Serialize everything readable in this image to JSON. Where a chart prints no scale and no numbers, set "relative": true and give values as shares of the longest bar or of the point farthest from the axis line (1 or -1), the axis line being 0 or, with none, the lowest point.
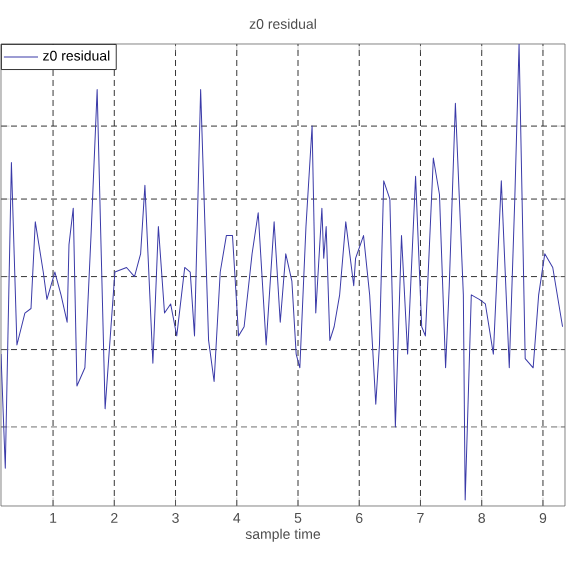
{
  "chart_data": {
    "type": "line",
    "title": "z0 residual",
    "xlabel": "sample time",
    "relative": true,
    "xlim": [
      0.15,
      9.36
    ],
    "xticks": [
      1,
      2,
      3,
      4,
      5,
      6,
      7,
      8,
      9
    ],
    "grid": true,
    "legend": "top left",
    "marker": "none",
    "line_style": "solid",
    "x": [
      0.15,
      0.22,
      0.32,
      0.41,
      0.54,
      0.64,
      0.71,
      0.84,
      0.9,
      1.03,
      1.13,
      1.23,
      1.26,
      1.33,
      1.39,
      1.52,
      1.62,
      1.72,
      1.85,
      2.01,
      2.2,
      2.33,
      2.43,
      2.5,
      2.63,
      2.72,
      2.82,
      2.92,
      3.02,
      3.15,
      3.24,
      3.31,
      3.41,
      3.54,
      3.63,
      3.73,
      3.83,
      3.93,
      4.03,
      4.12,
      4.25,
      4.35,
      4.48,
      4.61,
      4.71,
      4.8,
      4.9,
      4.97,
      5.03,
      5.13,
      5.23,
      5.29,
      5.39,
      5.42,
      5.46,
      5.52,
      5.59,
      5.68,
      5.78,
      5.91,
      5.94,
      6.07,
      6.17,
      6.27,
      6.33,
      6.4,
      6.5,
      6.59,
      6.69,
      6.79,
      6.92,
      7.02,
      7.08,
      7.21,
      7.31,
      7.41,
      7.47,
      7.57,
      7.7,
      7.73,
      7.83,
      7.96,
      8.06,
      8.19,
      8.32,
      8.45,
      8.54,
      8.61,
      8.71,
      8.84,
      8.93,
      9.03,
      9.16,
      9.32
    ],
    "series": [
      {
        "name": "z0 residual",
        "color": "#3a3aa8",
        "values": [
          0.32,
          0.07,
          0.74,
          0.34,
          0.41,
          0.42,
          0.61,
          0.5,
          0.44,
          0.5,
          0.45,
          0.39,
          0.56,
          0.64,
          0.25,
          0.29,
          0.58,
          0.9,
          0.2,
          0.5,
          0.51,
          0.49,
          0.54,
          0.69,
          0.3,
          0.6,
          0.41,
          0.43,
          0.36,
          0.51,
          0.5,
          0.36,
          0.9,
          0.35,
          0.26,
          0.5,
          0.58,
          0.58,
          0.36,
          0.38,
          0.54,
          0.63,
          0.34,
          0.61,
          0.39,
          0.54,
          0.48,
          0.32,
          0.29,
          0.6,
          0.82,
          0.41,
          0.64,
          0.53,
          0.6,
          0.35,
          0.38,
          0.45,
          0.61,
          0.47,
          0.53,
          0.58,
          0.45,
          0.21,
          0.34,
          0.7,
          0.66,
          0.16,
          0.58,
          0.32,
          0.71,
          0.38,
          0.36,
          0.75,
          0.67,
          0.29,
          0.47,
          0.87,
          0.45,
          0.0,
          0.45,
          0.44,
          0.43,
          0.32,
          0.7,
          0.29,
          0.66,
          1.0,
          0.31,
          0.29,
          0.45,
          0.54,
          0.51,
          0.38
        ]
      }
    ]
  }
}
